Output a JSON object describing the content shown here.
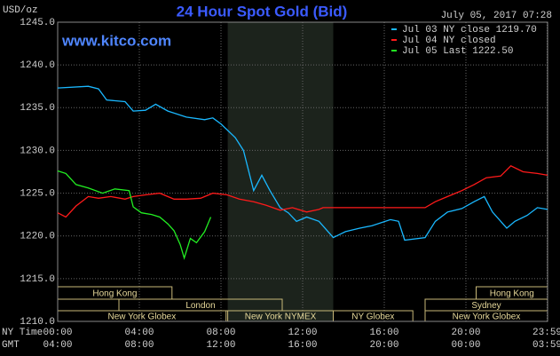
{
  "chart_data": {
    "type": "line",
    "title": "24 Hour Spot Gold (Bid)",
    "unit_label": "USD/oz",
    "timestamp": "July 05, 2017 07:28",
    "site": "www.kitco.com",
    "grid": true,
    "legend_position": "top-right",
    "xlim": [
      0,
      24
    ],
    "xticks": [
      {
        "value": 0,
        "label": "00:00"
      },
      {
        "value": 4,
        "label": "04:00"
      },
      {
        "value": 8,
        "label": "08:00"
      },
      {
        "value": 12,
        "label": "12:00"
      },
      {
        "value": 16,
        "label": "16:00"
      },
      {
        "value": 20,
        "label": "20:00"
      },
      {
        "value": 23.98,
        "label": "23:59"
      }
    ],
    "gmt_labels": [
      "04:00",
      "08:00",
      "12:00",
      "16:00",
      "20:00",
      "00:00",
      "03:59"
    ],
    "x_row_labels": [
      "NY Time",
      "GMT"
    ],
    "ylim": [
      1210,
      1245
    ],
    "yticks": [
      {
        "value": 1210,
        "label": "1210.0"
      },
      {
        "value": 1215,
        "label": "1215.0"
      },
      {
        "value": 1220,
        "label": "1220.0"
      },
      {
        "value": 1225,
        "label": "1225.0"
      },
      {
        "value": 1230,
        "label": "1230.0"
      },
      {
        "value": 1235,
        "label": "1235.0"
      },
      {
        "value": 1240,
        "label": "1240.0"
      },
      {
        "value": 1245,
        "label": "1245.0"
      }
    ],
    "series": [
      {
        "name": "Jul 03 NY close 1219.70",
        "color": "#1ab8ff",
        "x": [
          0,
          1.5,
          2,
          2.4,
          3.3,
          3.7,
          4.3,
          4.8,
          5.4,
          6.3,
          7.2,
          7.6,
          8,
          8.7,
          9.1,
          9.6,
          10,
          10.4,
          10.9,
          11.3,
          11.7,
          12.2,
          12.8,
          13.5,
          14.1,
          14.8,
          15.4,
          16.3,
          16.7,
          17,
          18,
          18.5,
          19.1,
          19.8,
          20.4,
          20.9,
          21.3,
          22,
          22.4,
          23,
          23.5,
          24
        ],
        "values": [
          1237.3,
          1237.5,
          1237.2,
          1235.9,
          1235.7,
          1234.6,
          1234.7,
          1235.4,
          1234.6,
          1233.9,
          1233.6,
          1233.8,
          1233.1,
          1231.5,
          1230,
          1225.3,
          1227.1,
          1225.3,
          1223.3,
          1222.7,
          1221.7,
          1222.2,
          1221.7,
          1219.8,
          1220.5,
          1220.9,
          1221.2,
          1221.9,
          1221.7,
          1219.5,
          1219.8,
          1221.7,
          1222.8,
          1223.2,
          1224,
          1224.6,
          1222.8,
          1220.9,
          1221.7,
          1222.4,
          1223.3,
          1223.1
        ]
      },
      {
        "name": "Jul 04 NY closed",
        "color": "#ff1a1a",
        "x": [
          0,
          0.4,
          0.9,
          1.5,
          2,
          2.6,
          3.3,
          3.7,
          4.3,
          5,
          5.7,
          6.3,
          7,
          7.6,
          8.3,
          8.9,
          9.6,
          10.2,
          10.9,
          11.5,
          12.2,
          12.8,
          13,
          18,
          18.5,
          19.1,
          19.8,
          20.4,
          21,
          21.7,
          22.2,
          22.8,
          23.5,
          24
        ],
        "values": [
          1222.7,
          1222.2,
          1223.5,
          1224.6,
          1224.4,
          1224.6,
          1224.3,
          1224.6,
          1224.8,
          1225,
          1224.3,
          1224.3,
          1224.4,
          1225,
          1224.8,
          1224.3,
          1224,
          1223.6,
          1223,
          1223.3,
          1222.8,
          1223.1,
          1223.3,
          1223.3,
          1224,
          1224.6,
          1225.3,
          1226,
          1226.8,
          1227,
          1228.2,
          1227.5,
          1227.3,
          1227.1
        ]
      },
      {
        "name": "Jul 05 Last 1222.50",
        "color": "#22ee22",
        "x": [
          0,
          0.4,
          0.9,
          1.5,
          2.2,
          2.8,
          3.5,
          3.7,
          4.1,
          4.6,
          5,
          5.4,
          5.7,
          6,
          6.2,
          6.5,
          6.8,
          7.2,
          7.5
        ],
        "values": [
          1227.6,
          1227.3,
          1226,
          1225.6,
          1225,
          1225.5,
          1225.3,
          1223.4,
          1222.7,
          1222.5,
          1222.2,
          1221.4,
          1220.6,
          1219,
          1217.4,
          1219.7,
          1219.2,
          1220.5,
          1222.2
        ]
      }
    ],
    "sessions": [
      {
        "label": "Hong Kong",
        "start": 0,
        "end": 5.6,
        "row": 0
      },
      {
        "label": "London",
        "start": 3,
        "end": 11,
        "row": 1
      },
      {
        "label": "New York Globex",
        "start": 0,
        "end": 8.25,
        "row": 2
      },
      {
        "label": "New York NYMEX",
        "start": 8.33,
        "end": 13.5,
        "row": 2,
        "highlight": true
      },
      {
        "label": "NY Globex",
        "start": 13.5,
        "end": 17.4,
        "row": 2
      },
      {
        "label": "Hong Kong",
        "start": 20.5,
        "end": 24,
        "row": 0
      },
      {
        "label": "Sydney",
        "start": 18,
        "end": 24,
        "row": 1
      },
      {
        "label": "New York Globex",
        "start": 18,
        "end": 24,
        "row": 2
      }
    ]
  }
}
